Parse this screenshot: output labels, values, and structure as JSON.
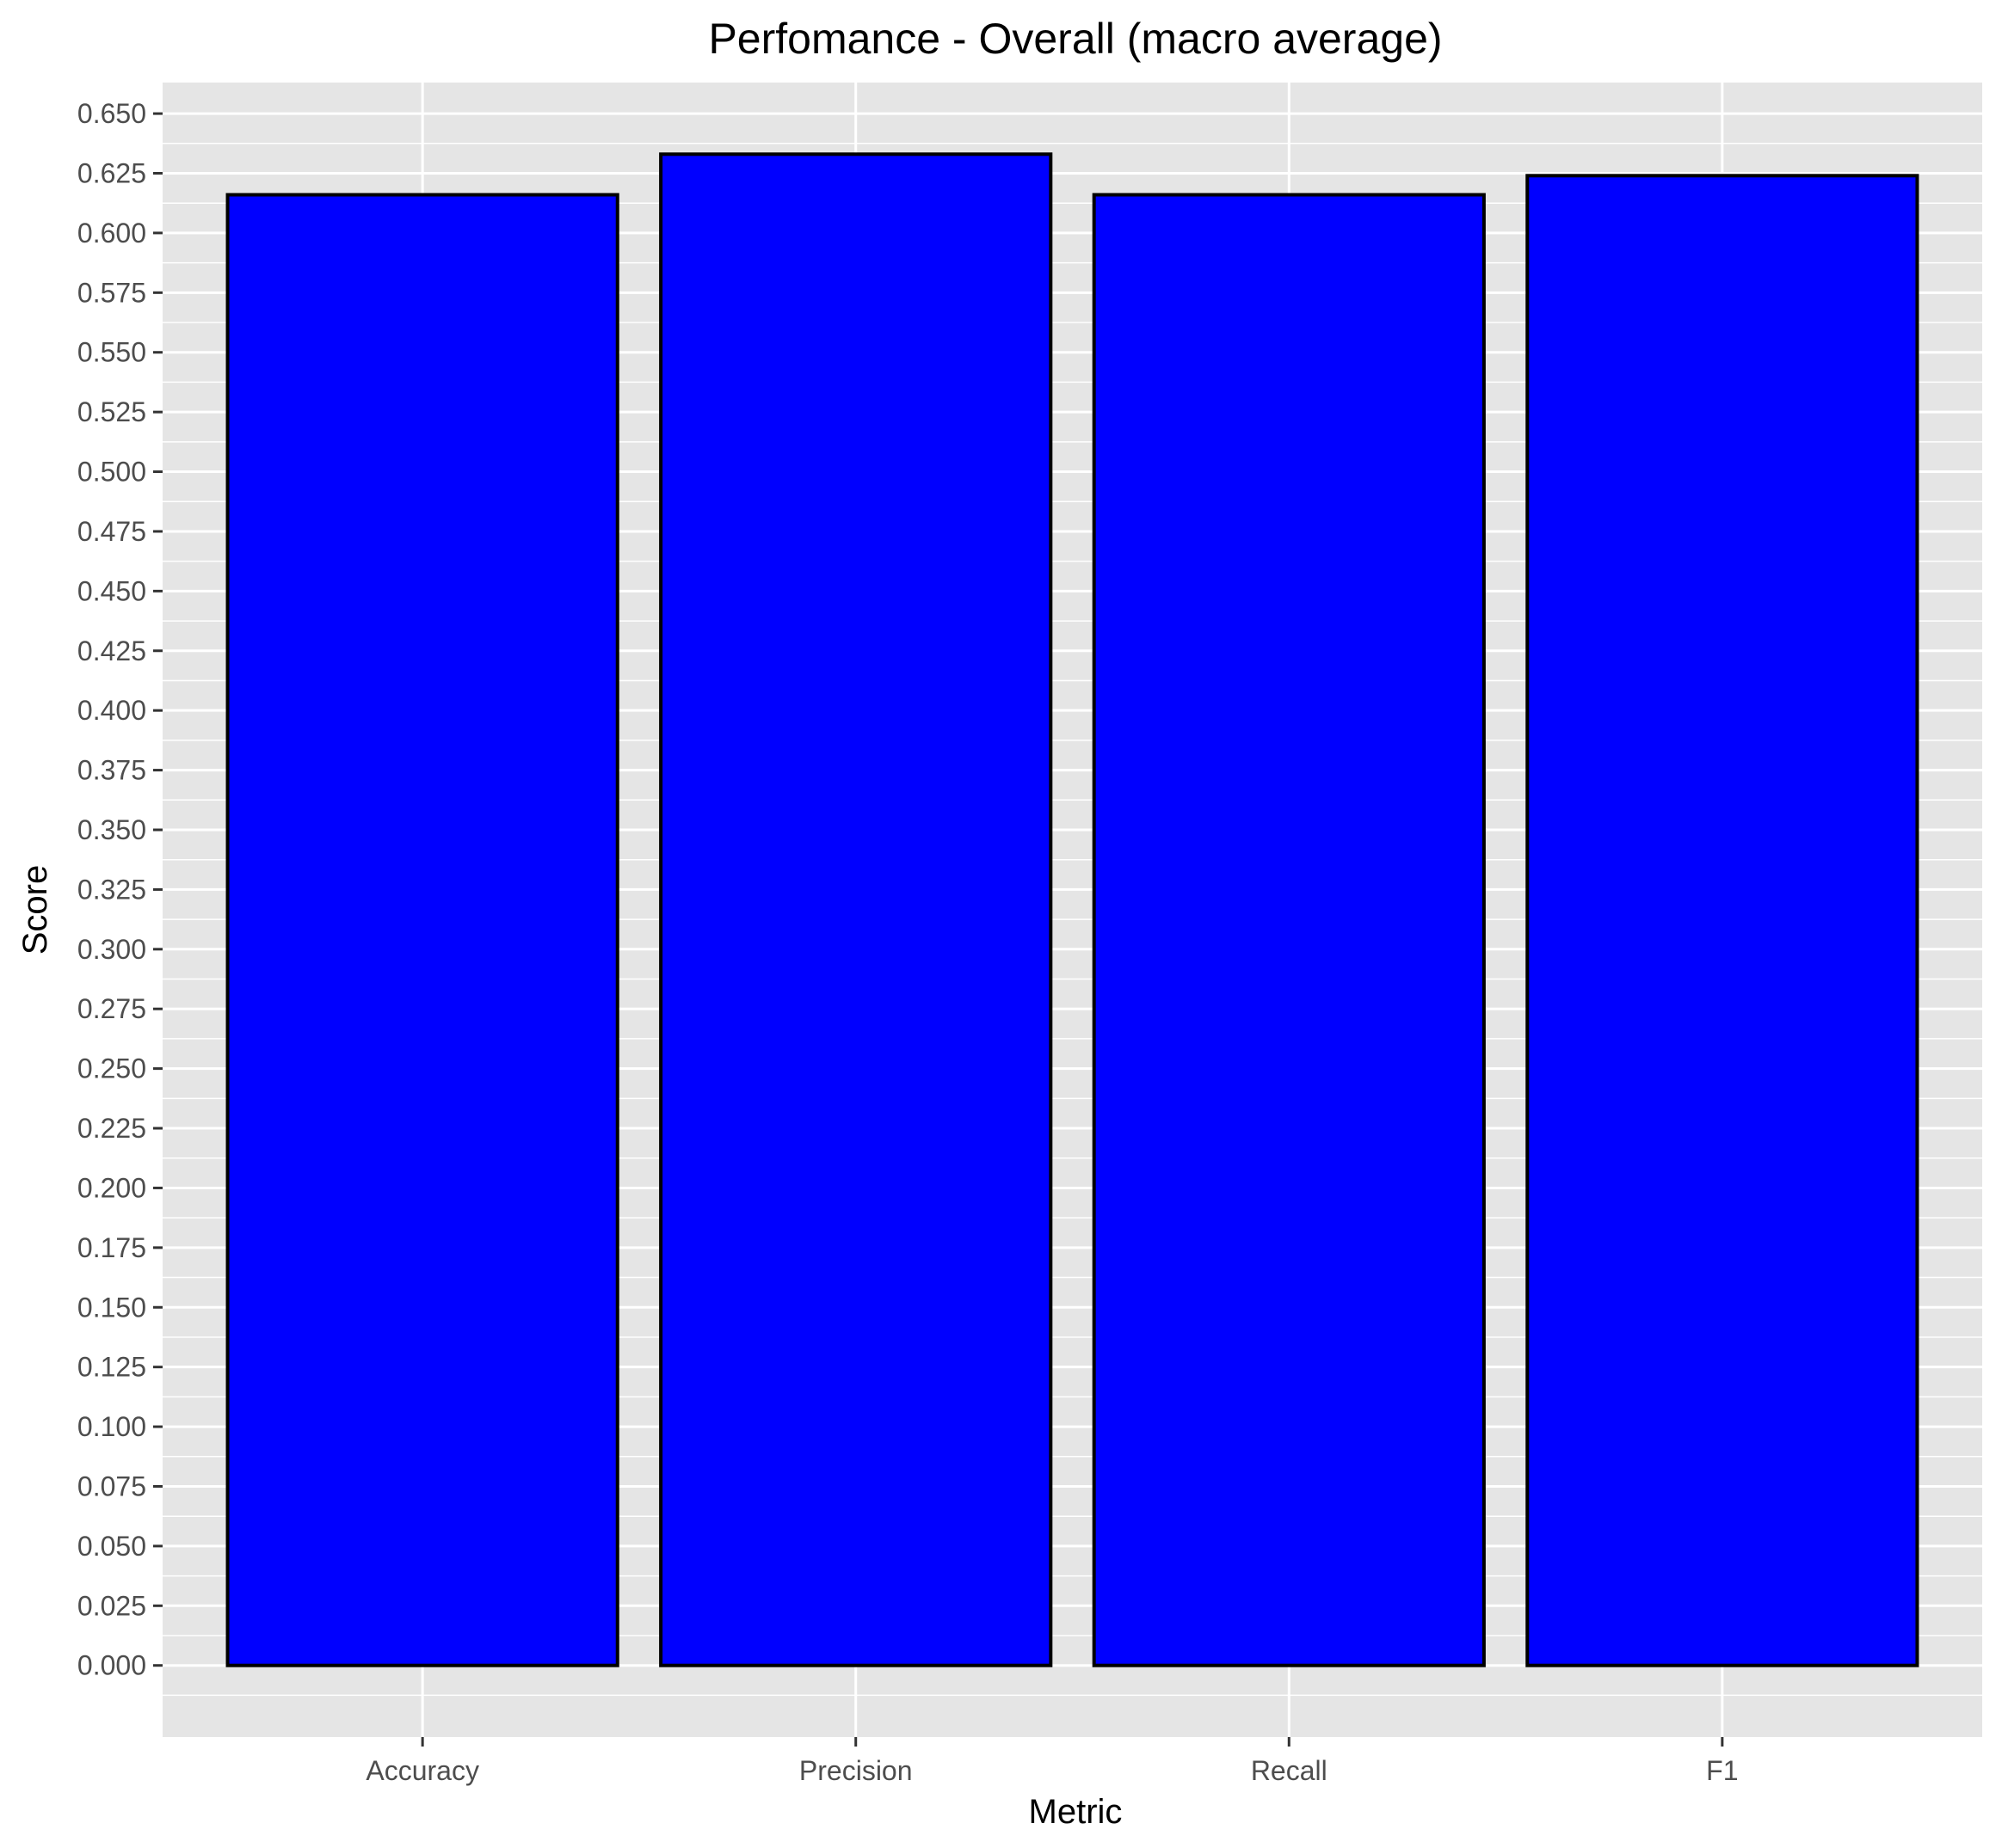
{
  "chart_data": {
    "type": "bar",
    "title": "Perfomance - Overall (macro average)",
    "xlabel": "Metric",
    "ylabel": "Score",
    "categories": [
      "Accuracy",
      "Precision",
      "Recall",
      "F1"
    ],
    "values": [
      0.616,
      0.633,
      0.616,
      0.624
    ],
    "ylim": [
      -0.03,
      0.663
    ],
    "yticks": [
      "0.000",
      "0.025",
      "0.050",
      "0.075",
      "0.100",
      "0.125",
      "0.150",
      "0.175",
      "0.200",
      "0.225",
      "0.250",
      "0.275",
      "0.300",
      "0.325",
      "0.350",
      "0.375",
      "0.400",
      "0.425",
      "0.450",
      "0.475",
      "0.500",
      "0.525",
      "0.550",
      "0.575",
      "0.600",
      "0.625",
      "0.650"
    ],
    "grid": true,
    "legend": "none",
    "colors": {
      "bar_fill": "#0000ff",
      "bar_stroke": "#000000",
      "panel_background": "#e5e5e5",
      "grid": "#ffffff",
      "tick_text": "#4d4d4d"
    }
  }
}
